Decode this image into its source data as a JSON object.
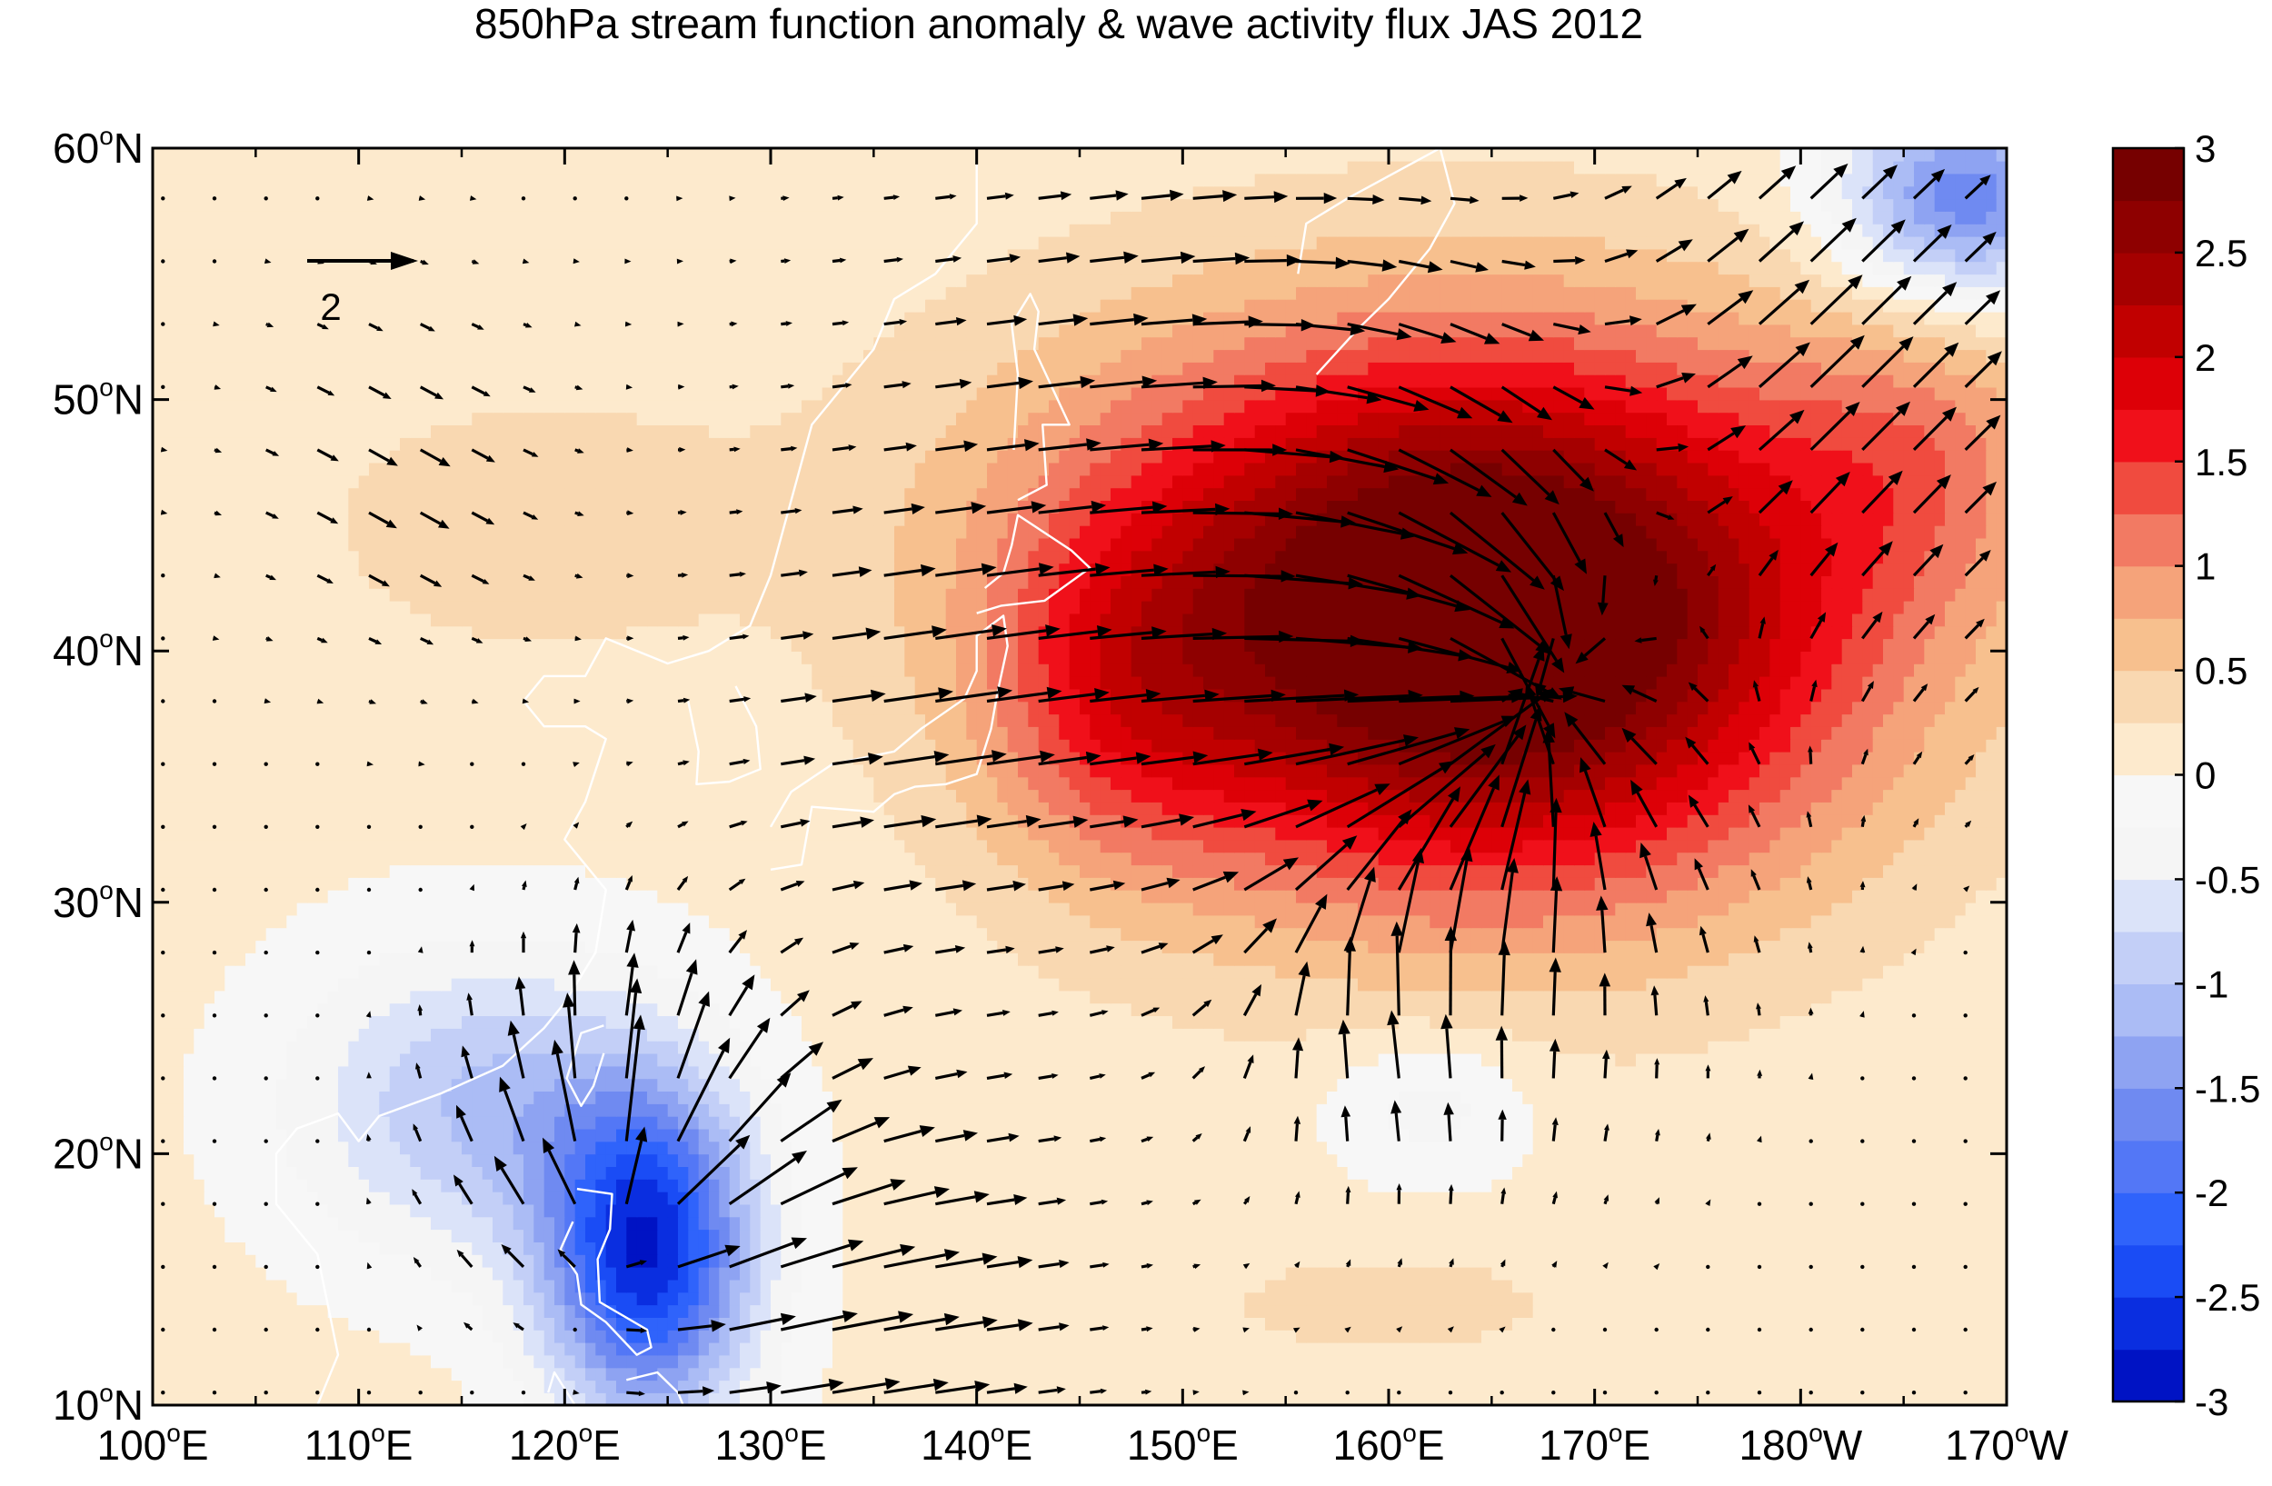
{
  "chart_data": {
    "type": "heatmap",
    "title": "850hPa stream function anomaly & wave activity flux JAS 2012",
    "x_axis": {
      "range": [
        100,
        190
      ],
      "ticks": [
        {
          "value": 100,
          "num": "100",
          "dir": "E"
        },
        {
          "value": 110,
          "num": "110",
          "dir": "E"
        },
        {
          "value": 120,
          "num": "120",
          "dir": "E"
        },
        {
          "value": 130,
          "num": "130",
          "dir": "E"
        },
        {
          "value": 140,
          "num": "140",
          "dir": "E"
        },
        {
          "value": 150,
          "num": "150",
          "dir": "E"
        },
        {
          "value": 160,
          "num": "160",
          "dir": "E"
        },
        {
          "value": 170,
          "num": "170",
          "dir": "E"
        },
        {
          "value": 180,
          "num": "180",
          "dir": "W"
        },
        {
          "value": 190,
          "num": "170",
          "dir": "W"
        }
      ]
    },
    "y_axis": {
      "range": [
        10,
        60
      ],
      "ticks": [
        {
          "value": 10,
          "num": "10",
          "dir": "N"
        },
        {
          "value": 20,
          "num": "20",
          "dir": "N"
        },
        {
          "value": 30,
          "num": "30",
          "dir": "N"
        },
        {
          "value": 40,
          "num": "40",
          "dir": "N"
        },
        {
          "value": 50,
          "num": "50",
          "dir": "N"
        },
        {
          "value": 60,
          "num": "60",
          "dir": "N"
        }
      ]
    },
    "degree_symbol": "o",
    "colorbar": {
      "range": [
        -3,
        3
      ],
      "levels": [
        -3,
        -2.75,
        -2.5,
        -2.25,
        -2,
        -1.75,
        -1.5,
        -1.25,
        -1,
        -0.75,
        -0.5,
        -0.25,
        0,
        0.25,
        0.5,
        0.75,
        1,
        1.25,
        1.5,
        1.75,
        2,
        2.25,
        2.5,
        2.75,
        3
      ],
      "colors": [
        "#0013c4",
        "#0a2ee0",
        "#1a4cf5",
        "#2f63fb",
        "#5377f6",
        "#6f8af1",
        "#8ea3f2",
        "#abbcf5",
        "#c3cff7",
        "#dbe3f9",
        "#f5f5f5",
        "#f7f7f7",
        "#fdeacd",
        "#f9d8b1",
        "#f7c08e",
        "#f5a37a",
        "#f27a63",
        "#f04b3f",
        "#f0101a",
        "#dd0007",
        "#c10000",
        "#a50000",
        "#8e0000",
        "#760000"
      ],
      "tick_labels": [
        "-3",
        "-2.5",
        "-2",
        "-1.5",
        "-1",
        "-0.5",
        "0",
        "0.5",
        "1",
        "1.5",
        "2",
        "2.5",
        "3"
      ]
    },
    "reference_vector": {
      "label": "2",
      "magnitude": 2
    },
    "stream_function_anomaly_centers": [
      {
        "lon": 165,
        "lat": 40,
        "value": 2.9,
        "sx": 17,
        "sy": 10
      },
      {
        "lon": 162,
        "lat": 46,
        "value": 1.0,
        "sx": 22,
        "sy": 9
      },
      {
        "lon": 186,
        "lat": 48,
        "value": 0.6,
        "sx": 7,
        "sy": 6
      },
      {
        "lon": 147,
        "lat": 38,
        "value": 0.8,
        "sx": 7,
        "sy": 7
      },
      {
        "lon": 118,
        "lat": 45,
        "value": 0.35,
        "sx": 10,
        "sy": 5
      },
      {
        "lon": 124,
        "lat": 16,
        "value": -2.7,
        "sx": 5,
        "sy": 6.5
      },
      {
        "lon": 116,
        "lat": 22,
        "value": -1.1,
        "sx": 9,
        "sy": 6
      },
      {
        "lon": 162,
        "lat": 22,
        "value": -0.5,
        "sx": 5,
        "sy": 3
      },
      {
        "lon": 188,
        "lat": 58,
        "value": -1.8,
        "sx": 6,
        "sy": 4
      },
      {
        "lon": 160,
        "lat": 14,
        "value": 0.35,
        "sx": 8,
        "sy": 2
      }
    ],
    "wave_activity_flux_sources": [
      {
        "lon": 165,
        "lat": 38,
        "strength": 3.0,
        "mode": "converge",
        "radius": 9
      },
      {
        "lon": 123,
        "lat": 18,
        "strength": 1.8,
        "mode": "diverge",
        "radius": 6
      },
      {
        "lon": 134,
        "lat": 14,
        "strength": 1.4,
        "mode": "eastward",
        "radius": 7
      },
      {
        "lon": 160,
        "lat": 26,
        "strength": 1.3,
        "mode": "northwest",
        "radius": 5
      },
      {
        "lon": 180,
        "lat": 50,
        "strength": 1.5,
        "mode": "northeast",
        "radius": 9
      },
      {
        "lon": 150,
        "lat": 48,
        "strength": 1.3,
        "mode": "eastward",
        "radius": 10
      },
      {
        "lon": 137,
        "lat": 37,
        "strength": 1.1,
        "mode": "eastward",
        "radius": 6
      },
      {
        "lon": 112,
        "lat": 47,
        "strength": 0.7,
        "mode": "southeast",
        "radius": 5
      }
    ]
  }
}
